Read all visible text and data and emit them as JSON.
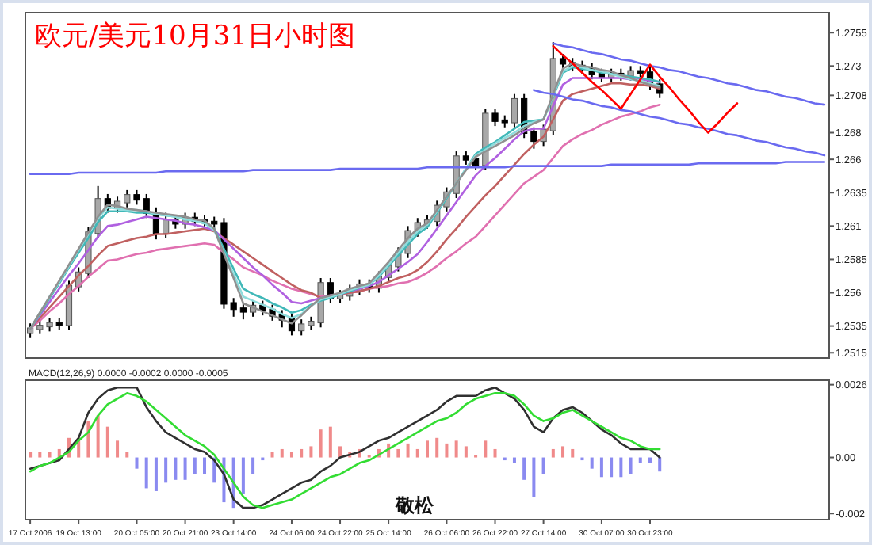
{
  "chart_data": [
    {
      "type": "candlestick",
      "title": "欧元/美元10月31日小时图",
      "categories": [
        null,
        null,
        null,
        null,
        null,
        null,
        null,
        null,
        null,
        null,
        null,
        null,
        null,
        null,
        null,
        null,
        null,
        null,
        null,
        null,
        null,
        null,
        null,
        null,
        null,
        null,
        null,
        null,
        null,
        null,
        null,
        null,
        null,
        null,
        null,
        null,
        null,
        null,
        null,
        null,
        null,
        null,
        null,
        null,
        null,
        null,
        null,
        null,
        null,
        null,
        null,
        null,
        null,
        null,
        null,
        null,
        null,
        null,
        null,
        null,
        null,
        null,
        null,
        null,
        null,
        null,
        null,
        null,
        null,
        null,
        null,
        null,
        null,
        null,
        null,
        null,
        null,
        null,
        null,
        null,
        null,
        null,
        null
      ],
      "ohlc": [
        [
          1.253,
          1.2537,
          1.2526,
          1.2533
        ],
        [
          1.2533,
          1.2539,
          1.2529,
          1.2535
        ],
        [
          1.2535,
          1.2541,
          1.2531,
          1.2537
        ],
        [
          1.2537,
          1.2541,
          1.2532,
          1.2536
        ],
        [
          1.2536,
          1.2569,
          1.2532,
          1.2565
        ],
        [
          1.2565,
          1.2579,
          1.2561,
          1.2575
        ],
        [
          1.2575,
          1.2609,
          1.2571,
          1.2605
        ],
        [
          1.2605,
          1.264,
          1.2601,
          1.263
        ],
        [
          1.263,
          1.2634,
          1.262,
          1.2624
        ],
        [
          1.2624,
          1.2632,
          1.262,
          1.2628
        ],
        [
          1.2628,
          1.2637,
          1.2624,
          1.2633
        ],
        [
          1.2633,
          1.2637,
          1.2626,
          1.263
        ],
        [
          1.263,
          1.2634,
          1.2616,
          1.262
        ],
        [
          1.262,
          1.2624,
          1.26,
          1.2605
        ],
        [
          1.2605,
          1.262,
          1.2601,
          1.2614
        ],
        [
          1.2614,
          1.2618,
          1.2608,
          1.2612
        ],
        [
          1.2612,
          1.262,
          1.2608,
          1.2616
        ],
        [
          1.2616,
          1.262,
          1.261,
          1.2614
        ],
        [
          1.2614,
          1.2618,
          1.2609,
          1.2613
        ],
        [
          1.2613,
          1.2617,
          1.2608,
          1.2612
        ],
        [
          1.2612,
          1.2616,
          1.2548,
          1.2552
        ],
        [
          1.2552,
          1.2556,
          1.2542,
          1.2548
        ],
        [
          1.2548,
          1.2552,
          1.254,
          1.2546
        ],
        [
          1.2546,
          1.2554,
          1.2542,
          1.255
        ],
        [
          1.255,
          1.2554,
          1.2543,
          1.2547
        ],
        [
          1.2547,
          1.2551,
          1.2539,
          1.2543
        ],
        [
          1.2543,
          1.2547,
          1.2534,
          1.254
        ],
        [
          1.254,
          1.2544,
          1.2528,
          1.2532
        ],
        [
          1.2532,
          1.254,
          1.2528,
          1.2536
        ],
        [
          1.2536,
          1.2542,
          1.2532,
          1.2538
        ],
        [
          1.2538,
          1.2571,
          1.2534,
          1.2567
        ],
        [
          1.2567,
          1.2571,
          1.2552,
          1.2556
        ],
        [
          1.2556,
          1.2562,
          1.2552,
          1.2558
        ],
        [
          1.2558,
          1.2566,
          1.2554,
          1.2562
        ],
        [
          1.2562,
          1.257,
          1.2558,
          1.2566
        ],
        [
          1.2566,
          1.257,
          1.256,
          1.2564
        ],
        [
          1.2564,
          1.2576,
          1.256,
          1.2572
        ],
        [
          1.2572,
          1.2584,
          1.2568,
          1.258
        ],
        [
          1.258,
          1.2594,
          1.2576,
          1.259
        ],
        [
          1.259,
          1.261,
          1.2586,
          1.2606
        ],
        [
          1.2606,
          1.2616,
          1.2602,
          1.2612
        ],
        [
          1.2612,
          1.2618,
          1.2608,
          1.2614
        ],
        [
          1.2614,
          1.2629,
          1.261,
          1.2625
        ],
        [
          1.2625,
          1.2639,
          1.2621,
          1.2635
        ],
        [
          1.2635,
          1.2666,
          1.2631,
          1.2662
        ],
        [
          1.2662,
          1.2666,
          1.2656,
          1.266
        ],
        [
          1.266,
          1.2664,
          1.2652,
          1.2656
        ],
        [
          1.2656,
          1.2698,
          1.2652,
          1.2694
        ],
        [
          1.2694,
          1.2698,
          1.2685,
          1.2689
        ],
        [
          1.2689,
          1.2693,
          1.2684,
          1.2688
        ],
        [
          1.2688,
          1.2709,
          1.2684,
          1.2705
        ],
        [
          1.2705,
          1.2709,
          1.2676,
          1.268
        ],
        [
          1.268,
          1.2684,
          1.2668,
          1.2674
        ],
        [
          1.2674,
          1.2686,
          1.267,
          1.2682
        ],
        [
          1.2682,
          1.2748,
          1.2678,
          1.2735
        ],
        [
          1.2735,
          1.2739,
          1.2728,
          1.2732
        ],
        [
          1.2732,
          1.2736,
          1.2726,
          1.273
        ],
        [
          1.273,
          1.2734,
          1.2724,
          1.2728
        ],
        [
          1.2728,
          1.2732,
          1.272,
          1.2724
        ],
        [
          1.2724,
          1.2728,
          1.2718,
          1.2722
        ],
        [
          1.2722,
          1.2728,
          1.2718,
          1.2724
        ],
        [
          1.2724,
          1.2728,
          1.2719,
          1.2723
        ],
        [
          1.2723,
          1.273,
          1.2719,
          1.2726
        ],
        [
          1.2726,
          1.273,
          1.2721,
          1.2725
        ],
        [
          1.2725,
          1.2729,
          1.2712,
          1.2716
        ],
        [
          1.2716,
          1.272,
          1.2706,
          1.271
        ],
        null,
        null,
        null,
        null,
        null,
        null,
        null,
        null,
        null,
        null,
        null,
        null,
        null,
        null,
        null,
        null,
        null
      ],
      "series": [
        {
          "type": "line",
          "color": "#e070b0",
          "values": [
            1.2533,
            1.2539,
            1.2546,
            1.2552,
            1.2559,
            1.2565,
            1.2572,
            1.2578,
            1.2584,
            1.2585,
            1.2587,
            1.2589,
            1.259,
            1.2592,
            1.2593,
            1.2594,
            1.2595,
            1.2596,
            1.2597,
            1.2596,
            1.259,
            1.2585,
            1.2579,
            1.2576,
            1.2573,
            1.2569,
            1.2566,
            1.2563,
            1.2561,
            1.2559,
            1.2557,
            1.2558,
            1.2559,
            1.256,
            1.2561,
            1.2563,
            1.2564,
            1.2565,
            1.2567,
            1.2568,
            1.2571,
            1.2575,
            1.258,
            1.2586,
            1.2591,
            1.2597,
            1.2602,
            1.261,
            1.2618,
            1.2626,
            1.2634,
            1.2642,
            1.2647,
            1.2652,
            1.2661,
            1.267,
            1.2675,
            1.2679,
            1.2682,
            1.2686,
            1.2689,
            1.2692,
            1.2694,
            1.2696,
            1.2699,
            1.2701,
            null,
            null,
            null,
            null,
            null,
            null,
            null,
            null,
            null,
            null,
            null,
            null,
            null,
            null,
            null,
            null,
            null
          ]
        },
        {
          "type": "line",
          "color": "#c06060",
          "values": [
            1.2533,
            1.2541,
            1.2549,
            1.2557,
            1.2565,
            1.2573,
            1.258,
            1.2588,
            1.2595,
            1.2597,
            1.2599,
            1.2601,
            1.2602,
            1.2604,
            1.2604,
            1.2605,
            1.2606,
            1.2607,
            1.2608,
            1.2606,
            1.2601,
            1.2596,
            1.2591,
            1.2586,
            1.2581,
            1.2576,
            1.2571,
            1.2566,
            1.2562,
            1.256,
            1.2556,
            1.2557,
            1.2559,
            1.256,
            1.2561,
            1.2563,
            1.2565,
            1.2568,
            1.2571,
            1.2573,
            1.2577,
            1.2583,
            1.2591,
            1.26,
            1.2608,
            1.2617,
            1.2625,
            1.2633,
            1.264,
            1.2648,
            1.2656,
            1.2664,
            1.2671,
            1.2677,
            1.269,
            1.2704,
            1.2709,
            1.2711,
            1.2713,
            1.2715,
            1.2717,
            1.2717,
            1.2716,
            1.2716,
            1.2715,
            1.2713,
            null,
            null,
            null,
            null,
            null,
            null,
            null,
            null,
            null,
            null,
            null,
            null,
            null,
            null,
            null,
            null,
            null
          ]
        },
        {
          "type": "line",
          "color": "#b060e0",
          "values": [
            1.2533,
            1.2543,
            1.2553,
            1.2563,
            1.2573,
            1.2582,
            1.2592,
            1.2602,
            1.261,
            1.2611,
            1.2613,
            1.2615,
            1.2617,
            1.2616,
            1.2615,
            1.2614,
            1.2612,
            1.2611,
            1.2609,
            1.2607,
            1.26,
            1.2593,
            1.2586,
            1.2579,
            1.2573,
            1.2566,
            1.256,
            1.2553,
            1.2552,
            1.2554,
            1.2556,
            1.2558,
            1.2559,
            1.2561,
            1.2563,
            1.2565,
            1.2568,
            1.2573,
            1.2578,
            1.2583,
            1.2589,
            1.2598,
            1.2608,
            1.2618,
            1.2628,
            1.2638,
            1.2648,
            1.2655,
            1.2661,
            1.2668,
            1.2675,
            1.2681,
            1.2683,
            1.2683,
            1.27,
            1.2716,
            1.2721,
            1.2721,
            1.2721,
            1.2721,
            1.2721,
            1.2721,
            1.272,
            1.272,
            1.2719,
            1.2718,
            null,
            null,
            null,
            null,
            null,
            null,
            null,
            null,
            null,
            null,
            null,
            null,
            null,
            null,
            null,
            null,
            null
          ]
        },
        {
          "type": "line",
          "color": "#40b8b8",
          "values": [
            1.2533,
            1.2544,
            1.2556,
            1.2567,
            1.2579,
            1.259,
            1.2601,
            1.2613,
            1.2621,
            1.2621,
            1.2621,
            1.262,
            1.262,
            1.2619,
            1.2618,
            1.2617,
            1.2615,
            1.2614,
            1.2612,
            1.2608,
            1.2593,
            1.2578,
            1.2563,
            1.2559,
            1.2556,
            1.2552,
            1.2549,
            1.2545,
            1.2547,
            1.2551,
            1.2554,
            1.2556,
            1.2559,
            1.2561,
            1.2564,
            1.2566,
            1.2572,
            1.258,
            1.2588,
            1.2596,
            1.2604,
            1.2609,
            1.262,
            1.2631,
            1.2642,
            1.2653,
            1.2664,
            1.2669,
            1.2673,
            1.2678,
            1.2683,
            1.2688,
            1.2689,
            1.269,
            1.2707,
            1.2725,
            1.2729,
            1.2728,
            1.2727,
            1.2725,
            1.2724,
            1.2723,
            1.2722,
            1.2721,
            1.272,
            1.2718,
            null,
            null,
            null,
            null,
            null,
            null,
            null,
            null,
            null,
            null,
            null,
            null,
            null,
            null,
            null,
            null,
            null
          ]
        },
        {
          "type": "line",
          "color": "#8fdcdc",
          "values": [
            1.2533,
            1.2545,
            1.2557,
            1.2568,
            1.258,
            1.2592,
            1.2604,
            1.2616,
            1.2624,
            1.2623,
            1.2622,
            1.2622,
            1.2621,
            1.2619,
            1.2618,
            1.2617,
            1.2615,
            1.2614,
            1.2612,
            1.2607,
            1.259,
            1.2574,
            1.2557,
            1.2554,
            1.2551,
            1.2548,
            1.2544,
            1.2541,
            1.2544,
            1.255,
            1.2555,
            1.2557,
            1.2559,
            1.2562,
            1.2564,
            1.2566,
            1.2573,
            1.2581,
            1.259,
            1.2598,
            1.2606,
            1.2611,
            1.2621,
            1.2632,
            1.2642,
            1.2653,
            1.2663,
            1.2667,
            1.2672,
            1.2676,
            1.268,
            1.2685,
            1.2688,
            1.269,
            1.2708,
            1.2726,
            1.273,
            1.2729,
            1.2727,
            1.2726,
            1.2724,
            1.2722,
            1.272,
            1.2719,
            1.2717,
            1.2715,
            null,
            null,
            null,
            null,
            null,
            null,
            null,
            null,
            null,
            null,
            null,
            null,
            null,
            null,
            null,
            null,
            null
          ]
        },
        {
          "type": "line",
          "color": "#909090",
          "values": [
            1.2533,
            1.2545,
            1.2557,
            1.2569,
            1.2581,
            1.2593,
            1.2605,
            1.2617,
            1.2626,
            1.2625,
            1.2623,
            1.2622,
            1.2621,
            1.262,
            1.2619,
            1.2618,
            1.2617,
            1.2615,
            1.2614,
            1.2608,
            1.2589,
            1.2571,
            1.2552,
            1.2549,
            1.2546,
            1.2543,
            1.254,
            1.2537,
            1.2543,
            1.255,
            1.2556,
            1.2558,
            1.256,
            1.2563,
            1.2565,
            1.2567,
            1.2575,
            1.2583,
            1.2592,
            1.2601,
            1.2608,
            1.2612,
            1.2622,
            1.2632,
            1.2642,
            1.2652,
            1.2662,
            1.2666,
            1.267,
            1.2674,
            1.2678,
            1.2683,
            1.2687,
            1.269,
            1.2709,
            1.2728,
            1.2732,
            1.273,
            1.2729,
            1.2727,
            1.2726,
            1.2723,
            1.2721,
            1.2718,
            1.2716,
            1.2714,
            null,
            null,
            null,
            null,
            null,
            null,
            null,
            null,
            null,
            null,
            null,
            null,
            null,
            null,
            null,
            null,
            null
          ]
        },
        {
          "type": "line",
          "color": "#6a6af0",
          "values": [
            1.2649,
            1.2649,
            1.2649,
            1.2649,
            1.2649,
            1.265,
            1.265,
            1.265,
            1.265,
            1.265,
            1.265,
            1.265,
            1.265,
            1.265,
            1.2651,
            1.2651,
            1.2651,
            1.2651,
            1.2651,
            1.2651,
            1.2651,
            1.2651,
            1.2651,
            1.2652,
            1.2652,
            1.2652,
            1.2652,
            1.2652,
            1.2652,
            1.2652,
            1.2652,
            1.2652,
            1.2653,
            1.2653,
            1.2653,
            1.2653,
            1.2653,
            1.2653,
            1.2653,
            1.2653,
            1.2653,
            1.2654,
            1.2654,
            1.2654,
            1.2654,
            1.2654,
            1.2654,
            1.2654,
            1.2654,
            1.2654,
            1.2655,
            1.2655,
            1.2655,
            1.2655,
            1.2655,
            1.2655,
            1.2655,
            1.2655,
            1.2655,
            1.2655,
            1.2656,
            1.2656,
            1.2656,
            1.2656,
            1.2656,
            1.2656,
            1.2656,
            1.2656,
            1.2656,
            1.2657,
            1.2657,
            1.2657,
            1.2657,
            1.2657,
            1.2657,
            1.2657,
            1.2657,
            1.2657,
            1.2658,
            1.2658,
            1.2658,
            1.2658,
            1.2658
          ]
        },
        {
          "type": "line",
          "color": "#6a6af0",
          "values": [
            null,
            null,
            null,
            null,
            null,
            null,
            null,
            null,
            null,
            null,
            null,
            null,
            null,
            null,
            null,
            null,
            null,
            null,
            null,
            null,
            null,
            null,
            null,
            null,
            null,
            null,
            null,
            null,
            null,
            null,
            null,
            null,
            null,
            null,
            null,
            null,
            null,
            null,
            null,
            null,
            null,
            null,
            null,
            null,
            null,
            null,
            null,
            null,
            null,
            null,
            null,
            null,
            null,
            null,
            1.2747,
            1.2745,
            1.2744,
            1.2742,
            1.274,
            1.2739,
            1.2737,
            1.2735,
            1.2734,
            1.2732,
            1.273,
            1.2729,
            1.2727,
            1.2726,
            1.2724,
            1.2722,
            1.2721,
            1.2719,
            1.2717,
            1.2716,
            1.2714,
            1.2712,
            1.2711,
            1.2709,
            1.2707,
            1.2706,
            1.2704,
            1.2702,
            1.2701
          ]
        },
        {
          "type": "line",
          "color": "#6a6af0",
          "values": [
            null,
            null,
            null,
            null,
            null,
            null,
            null,
            null,
            null,
            null,
            null,
            null,
            null,
            null,
            null,
            null,
            null,
            null,
            null,
            null,
            null,
            null,
            null,
            null,
            null,
            null,
            null,
            null,
            null,
            null,
            null,
            null,
            null,
            null,
            null,
            null,
            null,
            null,
            null,
            null,
            null,
            null,
            null,
            null,
            null,
            null,
            null,
            null,
            null,
            null,
            null,
            null,
            1.2712,
            1.271,
            1.2709,
            1.2707,
            1.2705,
            1.2704,
            1.2702,
            1.27,
            1.2699,
            1.2697,
            1.2696,
            1.2694,
            1.2692,
            1.2691,
            1.2689,
            1.2687,
            1.2686,
            1.2684,
            1.2683,
            1.2681,
            1.2679,
            1.2678,
            1.2676,
            1.2674,
            1.2673,
            1.2671,
            1.2669,
            1.2668,
            1.2666,
            1.2665,
            1.2663
          ]
        },
        {
          "type": "line",
          "color": "#ff0000",
          "values": [
            null,
            null,
            null,
            null,
            null,
            null,
            null,
            null,
            null,
            null,
            null,
            null,
            null,
            null,
            null,
            null,
            null,
            null,
            null,
            null,
            null,
            null,
            null,
            null,
            null,
            null,
            null,
            null,
            null,
            null,
            null,
            null,
            null,
            null,
            null,
            null,
            null,
            null,
            null,
            null,
            null,
            null,
            null,
            null,
            null,
            null,
            null,
            null,
            null,
            null,
            null,
            null,
            null,
            null,
            1.2745,
            1.2738,
            1.2732,
            1.2725,
            1.2718,
            1.2712,
            1.2705,
            1.2698,
            1.2709,
            1.272,
            1.2731,
            1.2722,
            1.2714,
            1.2705,
            1.2697,
            1.2688,
            1.268,
            1.2687,
            1.2695,
            1.2702,
            null,
            null,
            null,
            null,
            null,
            null,
            null,
            null,
            null
          ]
        }
      ],
      "ylim": [
        1.2511,
        1.277
      ],
      "yticks": [
        1.2755,
        1.273,
        1.2708,
        1.268,
        1.266,
        1.2635,
        1.261,
        1.2585,
        1.256,
        1.2535,
        1.2515
      ],
      "tick_labels": "y"
    },
    {
      "type": "bar",
      "title": "MACD(12,26,9) 0.0000 -0.0002 0.0000 -0.0005",
      "categories": [
        "17 Oct 2006",
        null,
        null,
        null,
        null,
        "19 Oct 13:00",
        null,
        null,
        null,
        null,
        null,
        "20 Oct 05:00",
        null,
        null,
        null,
        null,
        "20 Oct 21:00",
        null,
        null,
        null,
        null,
        "23 Oct 14:00",
        null,
        null,
        null,
        null,
        null,
        "24 Oct 06:00",
        null,
        null,
        null,
        null,
        "24 Oct 22:00",
        null,
        null,
        null,
        null,
        "25 Oct 14:00",
        null,
        null,
        null,
        null,
        null,
        "26 Oct 06:00",
        null,
        null,
        null,
        null,
        "26 Oct 22:00",
        null,
        null,
        null,
        null,
        "27 Oct 14:00",
        null,
        null,
        null,
        null,
        null,
        "30 Oct 07:00",
        null,
        null,
        null,
        null,
        "30 Oct 23:00",
        null,
        null,
        null,
        null,
        null,
        null,
        null,
        null,
        null,
        null,
        null,
        null,
        null,
        null,
        null,
        null,
        null,
        null
      ],
      "values": [
        0.0002,
        0.0002,
        0.0002,
        0.0003,
        0.0007,
        0.0007,
        0.0013,
        0.0015,
        0.0011,
        0.0006,
        0.0002,
        -0.0004,
        -0.0011,
        -0.0012,
        -0.0009,
        -0.0008,
        -0.0008,
        -0.0006,
        -0.0006,
        -0.0009,
        -0.0016,
        -0.0018,
        -0.0013,
        -0.0006,
        -0.0001,
        0.0002,
        0.0003,
        0.0002,
        0.0003,
        0.0004,
        0.001,
        0.0011,
        0.0004,
        0.0002,
        0.0003,
        0.0001,
        0.0003,
        0.0005,
        0.0003,
        0.0005,
        0.0003,
        0.0006,
        0.0007,
        0.0005,
        0.0006,
        0.0004,
        0.0001,
        0.0006,
        0.0003,
        -0.0001,
        -0.0002,
        -0.0008,
        -0.0014,
        -0.0006,
        0.0003,
        0.0004,
        0.0003,
        -0.0001,
        -0.0004,
        -0.0007,
        -0.0007,
        -0.0007,
        -0.0006,
        -0.0002,
        -0.0002,
        -0.0005,
        null,
        null,
        null,
        null,
        null,
        null,
        null,
        null,
        null,
        null,
        null,
        null,
        null,
        null,
        null,
        null,
        null
      ],
      "colors": [
        "#f08a8a",
        "#f08a8a",
        "#f08a8a",
        "#f08a8a",
        "#f08a8a",
        "#f08a8a",
        "#f08a8a",
        "#f08a8a",
        "#f08a8a",
        "#f08a8a",
        "#f08a8a",
        "#8a8af0",
        "#8a8af0",
        "#8a8af0",
        "#8a8af0",
        "#8a8af0",
        "#8a8af0",
        "#8a8af0",
        "#8a8af0",
        "#8a8af0",
        "#8a8af0",
        "#8a8af0",
        "#8a8af0",
        "#8a8af0",
        "#8a8af0",
        "#f08a8a",
        "#f08a8a",
        "#f08a8a",
        "#f08a8a",
        "#f08a8a",
        "#f08a8a",
        "#f08a8a",
        "#f08a8a",
        "#f08a8a",
        "#f08a8a",
        "#f08a8a",
        "#f08a8a",
        "#f08a8a",
        "#f08a8a",
        "#f08a8a",
        "#f08a8a",
        "#f08a8a",
        "#f08a8a",
        "#f08a8a",
        "#f08a8a",
        "#f08a8a",
        "#f08a8a",
        "#f08a8a",
        "#f08a8a",
        "#8a8af0",
        "#8a8af0",
        "#8a8af0",
        "#8a8af0",
        "#8a8af0",
        "#f08a8a",
        "#f08a8a",
        "#f08a8a",
        "#8a8af0",
        "#8a8af0",
        "#8a8af0",
        "#8a8af0",
        "#8a8af0",
        "#8a8af0",
        "#8a8af0",
        "#8a8af0",
        "#8a8af0",
        null,
        null,
        null,
        null,
        null,
        null,
        null,
        null,
        null,
        null,
        null,
        null,
        null,
        null,
        null,
        null,
        null
      ],
      "series": [
        {
          "type": "line",
          "color": "#303030",
          "values": [
            -0.0004,
            -0.0003,
            -0.0002,
            -0.0001,
            0.0003,
            0.0007,
            0.0016,
            0.0021,
            0.0024,
            0.0025,
            0.0025,
            0.0025,
            0.0018,
            0.0013,
            0.0009,
            0.0007,
            0.0005,
            0.0003,
            0.0002,
            -0.0001,
            -0.0006,
            -0.0015,
            -0.0018,
            -0.0018,
            -0.0017,
            -0.0015,
            -0.0013,
            -0.0011,
            -0.0009,
            -0.0008,
            -0.0005,
            -0.0003,
            0.0,
            0.0001,
            0.0002,
            0.0004,
            0.0006,
            0.0007,
            0.0009,
            0.0011,
            0.0013,
            0.0015,
            0.0017,
            0.002,
            0.0022,
            0.0022,
            0.0022,
            0.0024,
            0.0025,
            0.0023,
            0.0021,
            0.0017,
            0.0011,
            0.0009,
            0.0014,
            0.0017,
            0.0018,
            0.0016,
            0.0013,
            0.001,
            0.0008,
            0.0005,
            0.0003,
            0.0003,
            0.0003,
            0.0,
            null,
            null,
            null,
            null,
            null,
            null,
            null,
            null,
            null,
            null,
            null,
            null,
            null,
            null,
            null,
            null,
            null
          ]
        },
        {
          "type": "line",
          "color": "#33dd33",
          "values": [
            -0.0005,
            -0.0003,
            -0.0002,
            0.0,
            0.0002,
            0.0006,
            0.0009,
            0.0015,
            0.0019,
            0.0021,
            0.0023,
            0.0022,
            0.002,
            0.0017,
            0.0014,
            0.0011,
            0.0008,
            0.0006,
            0.0004,
            0.0001,
            -0.0004,
            -0.0009,
            -0.0014,
            -0.0017,
            -0.0018,
            -0.0017,
            -0.0016,
            -0.0015,
            -0.0013,
            -0.0011,
            -0.0009,
            -0.0007,
            -0.0006,
            -0.0004,
            -0.0002,
            -0.0001,
            0.0001,
            0.0003,
            0.0005,
            0.0007,
            0.0009,
            0.0011,
            0.0013,
            0.0014,
            0.0016,
            0.0019,
            0.0021,
            0.0022,
            0.0023,
            0.0023,
            0.0022,
            0.0019,
            0.0015,
            0.0013,
            0.0014,
            0.0016,
            0.0017,
            0.0015,
            0.0013,
            0.0011,
            0.0009,
            0.0007,
            0.0006,
            0.0004,
            0.0003,
            0.0003,
            null,
            null,
            null,
            null,
            null,
            null,
            null,
            null,
            null,
            null,
            null,
            null,
            null,
            null,
            null,
            null,
            null
          ]
        }
      ],
      "ylim": [
        -0.00222,
        0.00276
      ],
      "yticks": [
        0.0026,
        {
          "value": 0,
          "label": "0.00"
        },
        -0.002
      ],
      "annotations": [
        "敬松"
      ]
    }
  ]
}
